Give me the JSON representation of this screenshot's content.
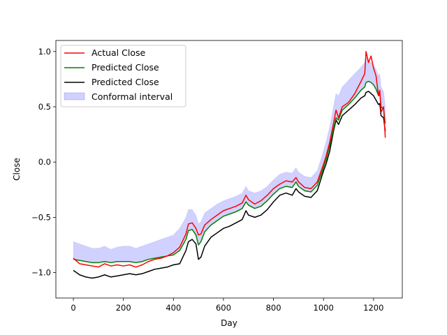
{
  "chart_data": {
    "type": "line",
    "title": "",
    "xlabel": "Day",
    "ylabel": "Close",
    "xlim": [
      -70,
      1315
    ],
    "ylim": [
      -1.23,
      1.1
    ],
    "xticks": [
      0,
      200,
      400,
      600,
      800,
      1000,
      1200
    ],
    "xtick_labels": [
      "0",
      "200",
      "400",
      "600",
      "800",
      "1000",
      "1200"
    ],
    "yticks": [
      -1.0,
      -0.5,
      0.0,
      0.5,
      1.0
    ],
    "ytick_labels": [
      "−1.0",
      "−0.5",
      "0.0",
      "0.5",
      "1.0"
    ],
    "grid": false,
    "legend_position": "upper-left",
    "x_points": [
      0,
      25,
      50,
      75,
      100,
      125,
      150,
      175,
      200,
      225,
      250,
      275,
      300,
      325,
      350,
      375,
      400,
      425,
      450,
      460,
      475,
      490,
      500,
      510,
      525,
      550,
      575,
      600,
      625,
      650,
      675,
      690,
      700,
      725,
      750,
      775,
      800,
      825,
      850,
      875,
      890,
      900,
      925,
      950,
      975,
      1000,
      1010,
      1025,
      1040,
      1050,
      1060,
      1075,
      1100,
      1125,
      1150,
      1165,
      1170,
      1180,
      1190,
      1200,
      1210,
      1220,
      1225,
      1230,
      1240,
      1247
    ],
    "series": [
      {
        "name": "Actual Close",
        "color": "#ff0000",
        "values": [
          -0.87,
          -0.92,
          -0.93,
          -0.94,
          -0.95,
          -0.92,
          -0.94,
          -0.93,
          -0.94,
          -0.93,
          -0.95,
          -0.93,
          -0.9,
          -0.88,
          -0.87,
          -0.85,
          -0.82,
          -0.77,
          -0.65,
          -0.56,
          -0.55,
          -0.6,
          -0.66,
          -0.65,
          -0.57,
          -0.52,
          -0.48,
          -0.44,
          -0.42,
          -0.4,
          -0.37,
          -0.3,
          -0.34,
          -0.38,
          -0.35,
          -0.3,
          -0.24,
          -0.2,
          -0.17,
          -0.18,
          -0.14,
          -0.18,
          -0.23,
          -0.24,
          -0.18,
          -0.02,
          0.05,
          0.18,
          0.35,
          0.47,
          0.4,
          0.5,
          0.54,
          0.62,
          0.73,
          0.8,
          1.0,
          0.9,
          0.96,
          0.85,
          0.78,
          0.6,
          0.65,
          0.45,
          0.5,
          0.22
        ]
      },
      {
        "name": "Predicted Close",
        "color": "#008000",
        "values": [
          -0.88,
          -0.89,
          -0.9,
          -0.91,
          -0.91,
          -0.9,
          -0.91,
          -0.9,
          -0.9,
          -0.9,
          -0.91,
          -0.9,
          -0.88,
          -0.87,
          -0.86,
          -0.85,
          -0.84,
          -0.8,
          -0.7,
          -0.62,
          -0.61,
          -0.66,
          -0.75,
          -0.72,
          -0.63,
          -0.57,
          -0.53,
          -0.49,
          -0.47,
          -0.45,
          -0.42,
          -0.36,
          -0.39,
          -0.42,
          -0.4,
          -0.35,
          -0.29,
          -0.24,
          -0.22,
          -0.23,
          -0.18,
          -0.22,
          -0.26,
          -0.27,
          -0.21,
          -0.05,
          0.02,
          0.15,
          0.3,
          0.4,
          0.38,
          0.47,
          0.52,
          0.58,
          0.65,
          0.68,
          0.72,
          0.73,
          0.72,
          0.7,
          0.66,
          0.6,
          0.62,
          0.5,
          0.48,
          0.35
        ]
      },
      {
        "name": "Predicted Close",
        "color": "#000000",
        "values": [
          -0.98,
          -1.02,
          -1.04,
          -1.05,
          -1.04,
          -1.02,
          -1.04,
          -1.03,
          -1.02,
          -1.01,
          -1.02,
          -1.01,
          -0.99,
          -0.97,
          -0.96,
          -0.95,
          -0.93,
          -0.92,
          -0.8,
          -0.72,
          -0.7,
          -0.74,
          -0.88,
          -0.86,
          -0.76,
          -0.68,
          -0.64,
          -0.6,
          -0.58,
          -0.55,
          -0.52,
          -0.44,
          -0.48,
          -0.5,
          -0.48,
          -0.43,
          -0.36,
          -0.3,
          -0.28,
          -0.3,
          -0.24,
          -0.27,
          -0.31,
          -0.32,
          -0.26,
          -0.08,
          -0.02,
          0.1,
          0.28,
          0.38,
          0.34,
          0.42,
          0.47,
          0.52,
          0.58,
          0.6,
          0.63,
          0.64,
          0.62,
          0.6,
          0.56,
          0.52,
          0.53,
          0.42,
          0.4,
          0.28
        ]
      }
    ],
    "interval": {
      "name": "Conformal interval",
      "color": "#0000ff",
      "opacity": 0.18,
      "lower": [
        -0.88,
        -0.89,
        -0.9,
        -0.91,
        -0.91,
        -0.9,
        -0.91,
        -0.9,
        -0.9,
        -0.9,
        -0.91,
        -0.9,
        -0.88,
        -0.87,
        -0.86,
        -0.85,
        -0.84,
        -0.8,
        -0.7,
        -0.62,
        -0.61,
        -0.66,
        -0.75,
        -0.72,
        -0.63,
        -0.57,
        -0.53,
        -0.49,
        -0.47,
        -0.45,
        -0.42,
        -0.36,
        -0.39,
        -0.42,
        -0.4,
        -0.35,
        -0.29,
        -0.24,
        -0.22,
        -0.23,
        -0.18,
        -0.22,
        -0.26,
        -0.27,
        -0.21,
        -0.05,
        0.02,
        0.15,
        0.3,
        0.4,
        0.38,
        0.47,
        0.52,
        0.58,
        0.65,
        0.68,
        0.72,
        0.73,
        0.72,
        0.7,
        0.66,
        0.6,
        0.62,
        0.5,
        0.48,
        0.35
      ],
      "upper": [
        -0.72,
        -0.74,
        -0.76,
        -0.78,
        -0.78,
        -0.76,
        -0.79,
        -0.77,
        -0.76,
        -0.76,
        -0.78,
        -0.76,
        -0.74,
        -0.72,
        -0.7,
        -0.68,
        -0.66,
        -0.6,
        -0.5,
        -0.43,
        -0.43,
        -0.48,
        -0.56,
        -0.54,
        -0.46,
        -0.42,
        -0.38,
        -0.35,
        -0.33,
        -0.31,
        -0.28,
        -0.22,
        -0.26,
        -0.28,
        -0.26,
        -0.22,
        -0.16,
        -0.11,
        -0.09,
        -0.1,
        -0.05,
        -0.09,
        -0.13,
        -0.14,
        -0.08,
        0.1,
        0.18,
        0.32,
        0.5,
        0.62,
        0.6,
        0.68,
        0.74,
        0.8,
        0.86,
        0.9,
        0.95,
        0.92,
        0.9,
        0.88,
        0.84,
        0.78,
        0.8,
        0.68,
        0.64,
        0.5
      ]
    },
    "legend": [
      "Actual Close",
      "Predicted Close",
      "Predicted Close",
      "Conformal interval"
    ]
  }
}
